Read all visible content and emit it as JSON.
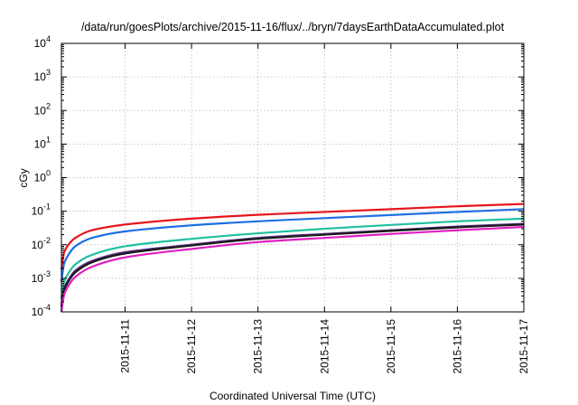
{
  "chart_data": {
    "type": "line",
    "title": "/data/run/goesPlots/archive/2015-11-16/flux/../bryn/7daysEarthDataAccumulated.plot",
    "xlabel": "Coordinated Universal Time (UTC)",
    "ylabel": "cGy",
    "y_scale": "log",
    "ylim": [
      0.0001,
      10000
    ],
    "y_ticks": [
      {
        "base": "10",
        "exp": "-4",
        "value": 0.0001
      },
      {
        "base": "10",
        "exp": "-3",
        "value": 0.001
      },
      {
        "base": "10",
        "exp": "-2",
        "value": 0.01
      },
      {
        "base": "10",
        "exp": "-1",
        "value": 0.1
      },
      {
        "base": "10",
        "exp": "0",
        "value": 1
      },
      {
        "base": "10",
        "exp": "1",
        "value": 10
      },
      {
        "base": "10",
        "exp": "2",
        "value": 100
      },
      {
        "base": "10",
        "exp": "3",
        "value": 1000
      },
      {
        "base": "10",
        "exp": "4",
        "value": 10000
      }
    ],
    "xlim": [
      "2015-11-10T01:00",
      "2015-11-17T00:00"
    ],
    "x_ticks": [
      "2015-11-11",
      "2015-11-12",
      "2015-11-13",
      "2015-11-14",
      "2015-11-15",
      "2015-11-16",
      "2015-11-17"
    ],
    "grid": true,
    "legend": "none",
    "x": [
      "2015-11-10T01:00",
      "2015-11-10T02:00",
      "2015-11-10T03:30",
      "2015-11-10T06:00",
      "2015-11-10T12:00",
      "2015-11-11T00:00",
      "2015-11-12T00:00",
      "2015-11-13T00:00",
      "2015-11-14T00:00",
      "2015-11-15T00:00",
      "2015-11-16T00:00",
      "2015-11-17T00:00"
    ],
    "series": [
      {
        "color": "#e8141c",
        "values": [
          0.0018,
          0.006,
          0.01,
          0.016,
          0.027,
          0.04,
          0.06,
          0.078,
          0.095,
          0.115,
          0.14,
          0.165
        ]
      },
      {
        "color": "#1f6fe0",
        "values": [
          0.0008,
          0.0028,
          0.005,
          0.009,
          0.016,
          0.025,
          0.038,
          0.05,
          0.062,
          0.077,
          0.095,
          0.115
        ]
      },
      {
        "color": "#20c0a0",
        "values": [
          0.00025,
          0.0008,
          0.0014,
          0.0026,
          0.005,
          0.009,
          0.015,
          0.022,
          0.03,
          0.039,
          0.05,
          0.06
        ]
      },
      {
        "color": "#5a2d82",
        "values": [
          0.00016,
          0.0005,
          0.0009,
          0.0017,
          0.0033,
          0.006,
          0.01,
          0.016,
          0.021,
          0.027,
          0.035,
          0.042
        ]
      },
      {
        "color": "#1a1a1a",
        "values": [
          0.00014,
          0.00045,
          0.0008,
          0.0015,
          0.003,
          0.0055,
          0.0095,
          0.015,
          0.02,
          0.026,
          0.033,
          0.04
        ]
      },
      {
        "color": "#e020c0",
        "values": [
          0.0001,
          0.00033,
          0.0006,
          0.0011,
          0.0022,
          0.0042,
          0.0075,
          0.012,
          0.016,
          0.021,
          0.027,
          0.034
        ]
      }
    ]
  }
}
